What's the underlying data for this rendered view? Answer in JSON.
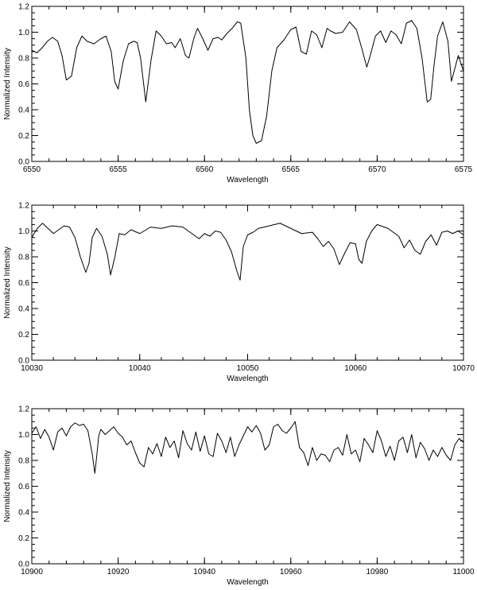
{
  "chart_data": [
    {
      "type": "line",
      "xlabel": "Wavelength",
      "ylabel": "Normalized Intensity",
      "xlim": [
        6550,
        6575
      ],
      "ylim": [
        0.0,
        1.2
      ],
      "grid": false,
      "xticks": [
        6550,
        6555,
        6560,
        6565,
        6570,
        6575
      ],
      "yticks": [
        "0.0",
        "0.2",
        "0.4",
        "0.6",
        "0.8",
        "1.0",
        "1.2"
      ],
      "series": [
        {
          "x": [
            6550.0,
            6550.3,
            6550.6,
            6550.9,
            6551.2,
            6551.5,
            6551.75,
            6552.0,
            6552.3,
            6552.6,
            6552.9,
            6553.2,
            6553.6,
            6554.0,
            6554.3,
            6554.6,
            6554.8,
            6555.0,
            6555.3,
            6555.6,
            6555.9,
            6556.1,
            6556.3,
            6556.6,
            6556.9,
            6557.2,
            6557.5,
            6557.8,
            6558.1,
            6558.3,
            6558.6,
            6558.9,
            6559.1,
            6559.4,
            6559.6,
            6559.9,
            6560.2,
            6560.5,
            6560.8,
            6561.0,
            6561.3,
            6561.6,
            6561.9,
            6562.1,
            6562.4,
            6562.6,
            6562.8,
            6563.0,
            6563.3,
            6563.6,
            6563.9,
            6564.2,
            6564.6,
            6565.0,
            6565.3,
            6565.6,
            6565.9,
            6566.2,
            6566.5,
            6566.8,
            6567.1,
            6567.3,
            6567.6,
            6568.0,
            6568.4,
            6568.8,
            6569.1,
            6569.4,
            6569.6,
            6569.9,
            6570.2,
            6570.5,
            6570.8,
            6571.1,
            6571.4,
            6571.7,
            6572.0,
            6572.3,
            6572.6,
            6572.9,
            6573.1,
            6573.3,
            6573.5,
            6573.8,
            6574.1,
            6574.3,
            6574.5,
            6574.7,
            6575.0
          ],
          "y": [
            0.86,
            0.84,
            0.88,
            0.93,
            0.96,
            0.93,
            0.82,
            0.63,
            0.66,
            0.88,
            0.97,
            0.93,
            0.91,
            0.95,
            0.97,
            0.85,
            0.62,
            0.56,
            0.78,
            0.91,
            0.93,
            0.92,
            0.8,
            0.46,
            0.78,
            1.01,
            0.97,
            0.91,
            0.92,
            0.88,
            0.95,
            0.82,
            0.8,
            0.96,
            1.03,
            0.95,
            0.86,
            0.95,
            0.96,
            0.94,
            0.99,
            1.03,
            1.08,
            1.07,
            0.8,
            0.4,
            0.2,
            0.14,
            0.16,
            0.35,
            0.7,
            0.88,
            0.94,
            1.02,
            1.04,
            0.85,
            0.83,
            1.01,
            0.98,
            0.88,
            1.03,
            1.01,
            0.99,
            1.0,
            1.08,
            1.02,
            0.88,
            0.73,
            0.82,
            0.97,
            1.01,
            0.92,
            1.01,
            0.98,
            0.91,
            1.07,
            1.09,
            1.03,
            0.8,
            0.46,
            0.48,
            0.75,
            0.97,
            1.08,
            0.93,
            0.62,
            0.72,
            0.82,
            0.7
          ]
        }
      ]
    },
    {
      "type": "line",
      "xlabel": "Wavelength",
      "ylabel": "Normalized Intensity",
      "xlim": [
        10030,
        10070
      ],
      "ylim": [
        0.0,
        1.2
      ],
      "grid": false,
      "xticks": [
        10030,
        10040,
        10050,
        10060,
        10070
      ],
      "yticks": [
        "0.0",
        "0.2",
        "0.4",
        "0.6",
        "0.8",
        "1.0",
        "1.2"
      ],
      "series": [
        {
          "x": [
            10030.0,
            10030.5,
            10031.0,
            10031.5,
            10032.0,
            10032.5,
            10033.0,
            10033.5,
            10034.0,
            10034.5,
            10035.0,
            10035.3,
            10035.6,
            10036.0,
            10036.5,
            10037.0,
            10037.3,
            10037.7,
            10038.1,
            10038.6,
            10039.2,
            10040.0,
            10041.0,
            10042.0,
            10043.0,
            10044.0,
            10045.0,
            10045.5,
            10046.0,
            10046.5,
            10047.0,
            10047.5,
            10048.0,
            10048.5,
            10049.0,
            10049.3,
            10049.6,
            10050.0,
            10050.5,
            10051.0,
            10052.0,
            10053.0,
            10054.0,
            10055.0,
            10056.0,
            10056.5,
            10057.0,
            10057.5,
            10058.0,
            10058.5,
            10059.0,
            10059.5,
            10060.0,
            10060.3,
            10060.6,
            10061.0,
            10061.5,
            10062.0,
            10063.0,
            10064.0,
            10064.5,
            10065.0,
            10065.5,
            10066.0,
            10066.5,
            10067.0,
            10067.5,
            10068.0,
            10068.5,
            10069.0,
            10069.5,
            10070.0
          ],
          "y": [
            0.95,
            1.02,
            1.06,
            1.02,
            0.98,
            1.01,
            1.04,
            1.03,
            0.95,
            0.8,
            0.68,
            0.75,
            0.95,
            1.02,
            0.96,
            0.82,
            0.66,
            0.8,
            0.98,
            0.97,
            1.01,
            0.98,
            1.03,
            1.02,
            1.04,
            1.03,
            0.97,
            0.94,
            0.98,
            0.96,
            1.0,
            0.99,
            0.93,
            0.84,
            0.69,
            0.62,
            0.88,
            0.97,
            0.99,
            1.02,
            1.04,
            1.06,
            1.02,
            0.98,
            0.99,
            0.94,
            0.88,
            0.92,
            0.86,
            0.74,
            0.83,
            0.91,
            0.9,
            0.78,
            0.75,
            0.92,
            1.0,
            1.05,
            1.02,
            0.96,
            0.87,
            0.93,
            0.85,
            0.82,
            0.92,
            0.97,
            0.89,
            0.99,
            1.0,
            0.98,
            1.0,
            0.97
          ]
        }
      ]
    },
    {
      "type": "line",
      "xlabel": "Wavelength",
      "ylabel": "Normalized Intensity",
      "xlim": [
        10900,
        11000
      ],
      "ylim": [
        0.0,
        1.2
      ],
      "grid": false,
      "xticks": [
        10900,
        10920,
        10940,
        10960,
        10980,
        11000
      ],
      "yticks": [
        "0.0",
        "0.2",
        "0.4",
        "0.6",
        "0.8",
        "1.0",
        "1.2"
      ],
      "series": [
        {
          "x": [
            10900,
            10901,
            10902,
            10903,
            10904,
            10905,
            10906,
            10907,
            10908,
            10909,
            10910,
            10911,
            10912,
            10913,
            10914,
            10914.6,
            10915,
            10915.5,
            10916,
            10917,
            10918,
            10919,
            10920,
            10921,
            10922,
            10923,
            10924,
            10925,
            10926,
            10927,
            10928,
            10929,
            10930,
            10931,
            10932,
            10933,
            10934,
            10935,
            10936,
            10937,
            10938,
            10939,
            10940,
            10941,
            10942,
            10943,
            10944,
            10945,
            10946,
            10947,
            10948,
            10949,
            10950,
            10951,
            10952,
            10953,
            10954,
            10955,
            10956,
            10957,
            10958,
            10959,
            10960,
            10961,
            10962,
            10963,
            10964,
            10965,
            10966,
            10967,
            10968,
            10969,
            10970,
            10971,
            10972,
            10973,
            10974,
            10975,
            10976,
            10977,
            10978,
            10979,
            10980,
            10981,
            10982,
            10983,
            10984,
            10985,
            10986,
            10987,
            10988,
            10989,
            10990,
            10991,
            10992,
            10993,
            10994,
            10995,
            10996,
            10997,
            10998,
            10999,
            11000
          ],
          "y": [
            1.01,
            1.06,
            0.97,
            1.04,
            0.98,
            0.88,
            1.02,
            1.05,
            0.99,
            1.06,
            1.09,
            1.07,
            1.08,
            1.03,
            0.85,
            0.7,
            0.82,
            0.99,
            1.04,
            1.0,
            1.03,
            1.06,
            1.01,
            0.98,
            0.92,
            0.95,
            0.86,
            0.78,
            0.75,
            0.9,
            0.85,
            0.93,
            0.83,
            0.98,
            0.9,
            0.95,
            0.82,
            1.03,
            0.93,
            0.88,
            1.02,
            0.87,
            0.99,
            0.85,
            0.83,
            1.01,
            0.95,
            0.86,
            0.98,
            0.83,
            0.92,
            0.99,
            1.06,
            1.02,
            1.07,
            1.01,
            0.88,
            0.92,
            1.06,
            1.08,
            1.03,
            1.01,
            1.05,
            1.1,
            0.9,
            0.86,
            0.76,
            0.9,
            0.8,
            0.85,
            0.84,
            0.79,
            0.88,
            0.9,
            0.84,
            1.0,
            0.85,
            0.88,
            0.79,
            0.97,
            0.92,
            0.86,
            1.03,
            0.95,
            0.83,
            0.91,
            0.8,
            0.95,
            0.98,
            0.86,
            1.0,
            0.82,
            0.94,
            0.89,
            0.8,
            0.88,
            0.83,
            0.9,
            0.84,
            0.8,
            0.92,
            0.97,
            0.94
          ]
        }
      ]
    }
  ]
}
